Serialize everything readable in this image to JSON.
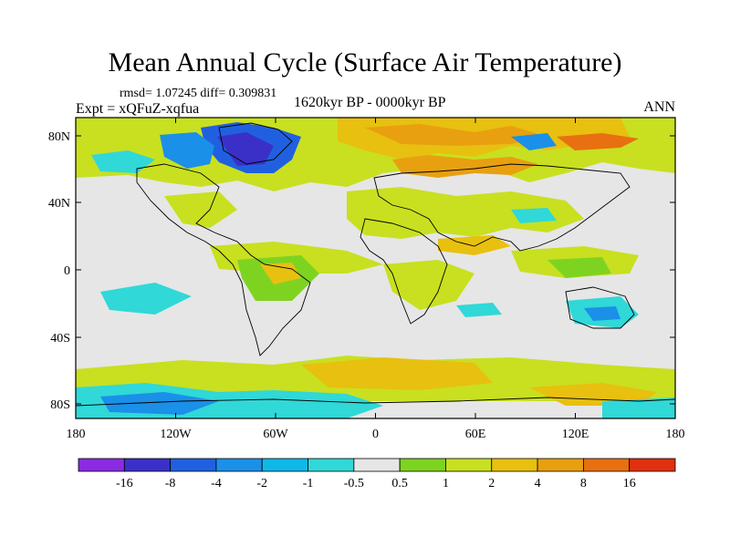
{
  "title": "Mean Annual Cycle (Surface Air Temperature)",
  "stats": "rmsd= 1.07245 diff= 0.309831",
  "expt": "Expt = xQFuZ-xqfua",
  "period": "1620kyr BP - 0000kyr BP",
  "season": "ANN",
  "lat_ticks": [
    "80N",
    "40N",
    "0",
    "40S",
    "80S"
  ],
  "lon_ticks": [
    "180",
    "120W",
    "60W",
    "0",
    "60E",
    "120E",
    "180"
  ],
  "colorbar": {
    "labels": [
      "-16",
      "-8",
      "-4",
      "-2",
      "-1",
      "-0.5",
      "0.5",
      "1",
      "2",
      "4",
      "8",
      "16"
    ],
    "colors": [
      "#8a2be2",
      "#3a30c8",
      "#2060e0",
      "#1a90e8",
      "#10b8e8",
      "#30d8d8",
      "#e6e6e6",
      "#7ed321",
      "#c8e020",
      "#e8c010",
      "#e8a010",
      "#e87010",
      "#e03010"
    ]
  }
}
